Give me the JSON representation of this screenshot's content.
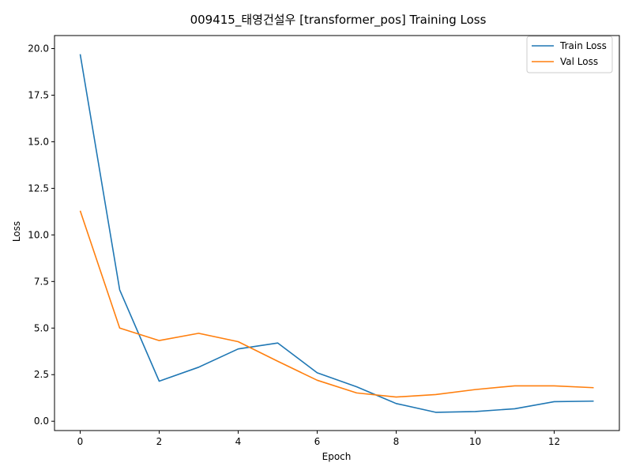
{
  "chart_data": {
    "type": "line",
    "title": "009415_태영건설우 [transformer_pos] Training Loss",
    "xlabel": "Epoch",
    "ylabel": "Loss",
    "xlim": [
      -0.65,
      13.65
    ],
    "ylim": [
      -0.5,
      20.7
    ],
    "xticks": [
      0,
      2,
      4,
      6,
      8,
      10,
      12
    ],
    "xtick_labels": [
      "0",
      "2",
      "4",
      "6",
      "8",
      "10",
      "12"
    ],
    "yticks": [
      0.0,
      2.5,
      5.0,
      7.5,
      10.0,
      12.5,
      15.0,
      17.5,
      20.0
    ],
    "ytick_labels": [
      "0.0",
      "2.5",
      "5.0",
      "7.5",
      "10.0",
      "12.5",
      "15.0",
      "17.5",
      "20.0"
    ],
    "grid": false,
    "legend_position": "top-right",
    "x": [
      0,
      1,
      2,
      3,
      4,
      5,
      6,
      7,
      8,
      9,
      10,
      11,
      12,
      13
    ],
    "series": [
      {
        "name": "Train Loss",
        "color": "#1f77b4",
        "values": [
          19.7,
          7.05,
          2.15,
          2.9,
          3.88,
          4.2,
          2.6,
          1.85,
          0.95,
          0.48,
          0.52,
          0.67,
          1.05,
          1.08
        ]
      },
      {
        "name": "Val Loss",
        "color": "#ff7f0e",
        "values": [
          11.3,
          5.0,
          4.33,
          4.72,
          4.27,
          3.22,
          2.2,
          1.52,
          1.3,
          1.43,
          1.7,
          1.9,
          1.9,
          1.8
        ]
      }
    ]
  }
}
